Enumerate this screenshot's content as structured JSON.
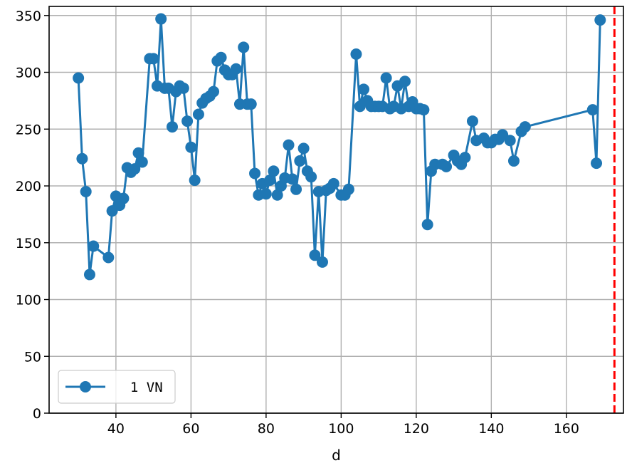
{
  "chart_data": {
    "type": "line",
    "title": "",
    "xlabel": "d",
    "ylabel": "",
    "xlim": [
      22.2,
      175.2
    ],
    "ylim": [
      0,
      358
    ],
    "xticks": [
      40,
      60,
      80,
      100,
      120,
      140,
      160
    ],
    "yticks": [
      0,
      50,
      100,
      150,
      200,
      250,
      300,
      350
    ],
    "grid": true,
    "legend_position": "lower left",
    "series": [
      {
        "name": "1 VN",
        "color": "#1f77b4",
        "marker": "circle",
        "x": [
          30,
          31,
          32,
          33,
          34,
          38,
          39,
          40,
          41,
          42,
          43,
          44,
          45,
          46,
          47,
          49,
          50,
          51,
          52,
          53,
          54,
          55,
          56,
          57,
          58,
          59,
          60,
          61,
          62,
          63,
          64,
          65,
          66,
          67,
          68,
          69,
          70,
          71,
          72,
          73,
          74,
          75,
          76,
          77,
          78,
          79,
          80,
          81,
          82,
          83,
          84,
          85,
          86,
          87,
          88,
          89,
          90,
          91,
          92,
          93,
          94,
          95,
          96,
          97,
          98,
          100,
          101,
          102,
          104,
          105,
          106,
          107,
          108,
          109,
          110,
          111,
          112,
          113,
          114,
          115,
          116,
          117,
          118,
          119,
          120,
          121,
          122,
          123,
          124,
          125,
          127,
          128,
          130,
          131,
          132,
          133,
          135,
          136,
          138,
          139,
          140,
          141,
          142,
          143,
          145,
          146,
          148,
          149,
          167,
          168,
          169
        ],
        "y": [
          295,
          224,
          195,
          122,
          147,
          137,
          178,
          191,
          183,
          189,
          216,
          212,
          215,
          229,
          221,
          312,
          312,
          288,
          347,
          286,
          286,
          252,
          283,
          288,
          286,
          257,
          234,
          205,
          263,
          273,
          277,
          279,
          283,
          310,
          313,
          302,
          298,
          298,
          303,
          272,
          322,
          272,
          272,
          211,
          192,
          202,
          193,
          205,
          213,
          192,
          200,
          207,
          236,
          206,
          197,
          222,
          233,
          213,
          208,
          139,
          195,
          133,
          196,
          198,
          202,
          192,
          192,
          197,
          316,
          270,
          285,
          275,
          270,
          270,
          270,
          270,
          295,
          268,
          270,
          288,
          268,
          292,
          270,
          274,
          268,
          268,
          267,
          166,
          213,
          219,
          219,
          217,
          227,
          222,
          219,
          225,
          257,
          240,
          242,
          238,
          238,
          241,
          241,
          245,
          240,
          222,
          248,
          252,
          267,
          220,
          346
        ]
      }
    ],
    "vlines": [
      {
        "x": 172.8,
        "color": "#ff0000",
        "style": "dashed"
      }
    ]
  }
}
